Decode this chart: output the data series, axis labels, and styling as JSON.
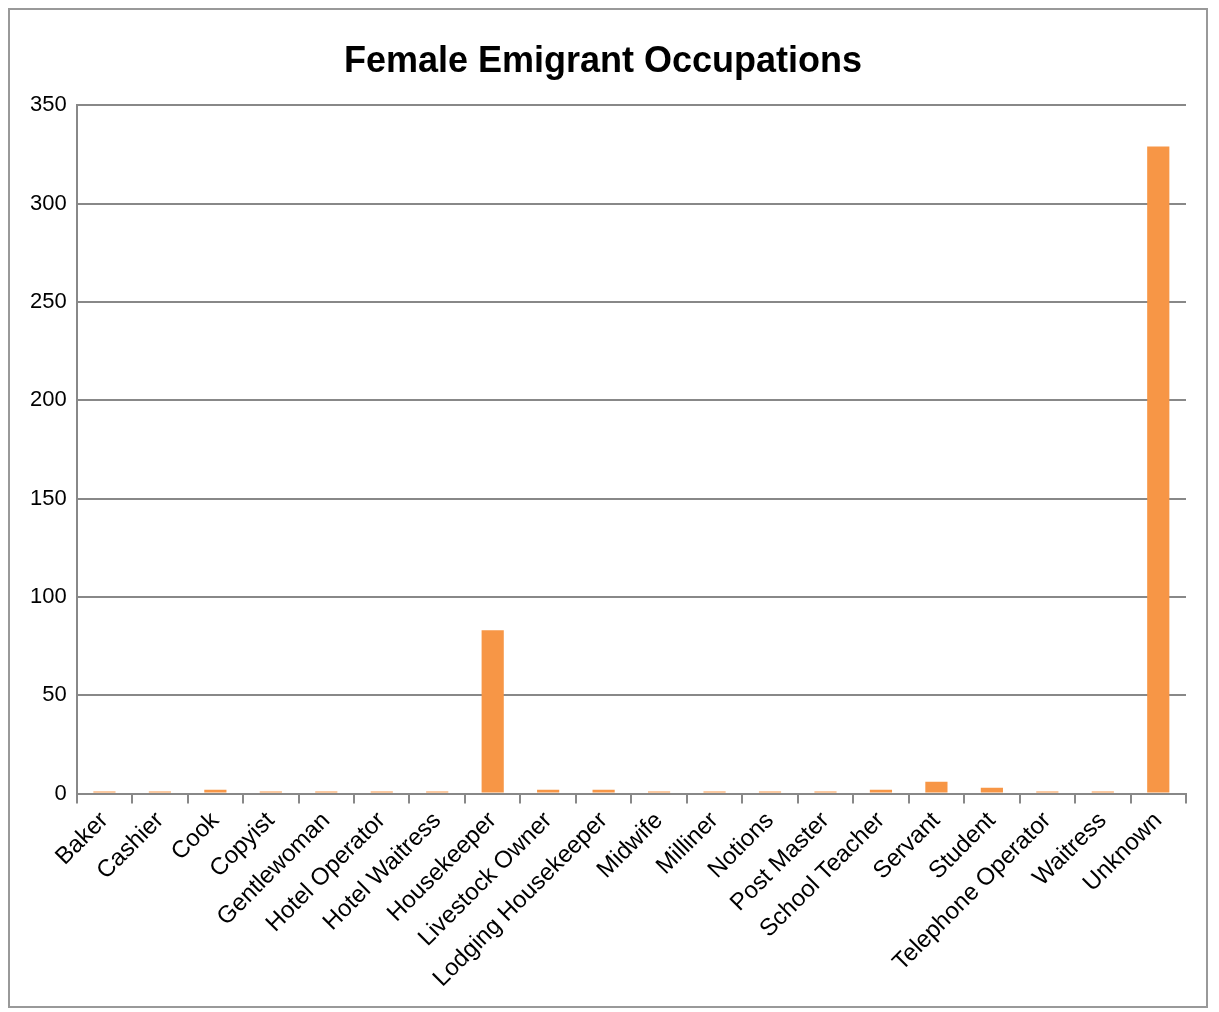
{
  "chart_data": {
    "type": "bar",
    "title": "Female Emigrant Occupations",
    "categories": [
      "Baker",
      "Cashier",
      "Cook",
      "Copyist",
      "Gentlewoman",
      "Hotel Operator",
      "Hotel Waitress",
      "Housekeeper",
      "Livestock Owner",
      "Lodging Housekeeper",
      "Midwife",
      "Milliner",
      "Notions",
      "Post Master",
      "School Teacher",
      "Servant",
      "Student",
      "Telephone Operator",
      "Waitress",
      "Unknown"
    ],
    "values": [
      1,
      1,
      2,
      1,
      1,
      1,
      1,
      83,
      2,
      2,
      1,
      1,
      1,
      1,
      2,
      6,
      3,
      1,
      1,
      329
    ],
    "color": "#f79646",
    "ylim": [
      0,
      350
    ],
    "yticks": [
      0,
      50,
      100,
      150,
      200,
      250,
      300,
      350
    ],
    "grid": "y",
    "legend": false
  }
}
